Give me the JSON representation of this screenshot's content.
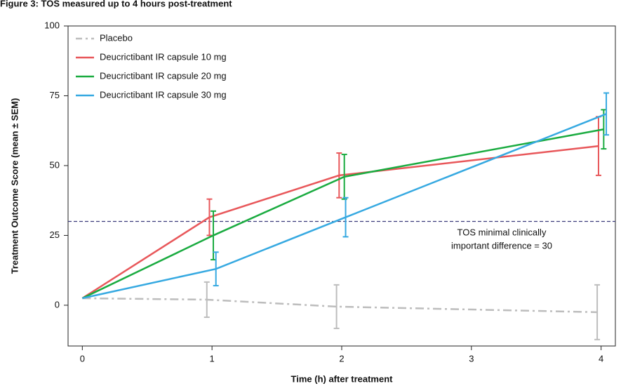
{
  "chart_data": {
    "type": "line",
    "title": "Figure 3: TOS measured up to 4 hours post-treatment",
    "x_label": "Time (h) after treatment",
    "y_label": "Treatment Outcome Score (mean ± SEM)",
    "xlim": [
      -0.11,
      4.11
    ],
    "xticks": [
      0,
      1,
      2,
      3,
      4
    ],
    "ylim": [
      -14.6,
      100
    ],
    "yticks": [
      0,
      25,
      50,
      75,
      100
    ],
    "reference_line": 30,
    "annotation": [
      "TOS minimal clinically",
      "important difference = 30"
    ],
    "legend": "upper left",
    "series": [
      {
        "name": "Placebo",
        "color": "#bdbdbd",
        "dash": "dashdot",
        "x": [
          0,
          0.96,
          1.96,
          3.97
        ],
        "values": [
          2.5,
          2,
          -0.5,
          -2.5
        ],
        "errors": [
          null,
          6.3,
          7.8,
          9.8
        ]
      },
      {
        "name": "Deucrictibant IR capsule 10 mg",
        "color": "#e8575a",
        "x": [
          0,
          0.98,
          1.98,
          3.98
        ],
        "values": [
          2.5,
          31.5,
          46.5,
          57
        ],
        "errors": [
          null,
          6.5,
          8,
          10.5
        ]
      },
      {
        "name": "Deucrictibant IR capsule 20 mg",
        "color": "#1aab40",
        "x": [
          0,
          1.01,
          2.02,
          4.02
        ],
        "values": [
          2.5,
          25,
          46,
          63
        ],
        "errors": [
          null,
          8.7,
          8,
          7
        ]
      },
      {
        "name": "Deucrictibant IR capsule 30 mg",
        "color": "#36a9e1",
        "x": [
          0,
          1.03,
          2.03,
          4.04
        ],
        "values": [
          2.5,
          13,
          31.5,
          68.5
        ],
        "errors": [
          null,
          6,
          7,
          7.5
        ]
      }
    ]
  }
}
